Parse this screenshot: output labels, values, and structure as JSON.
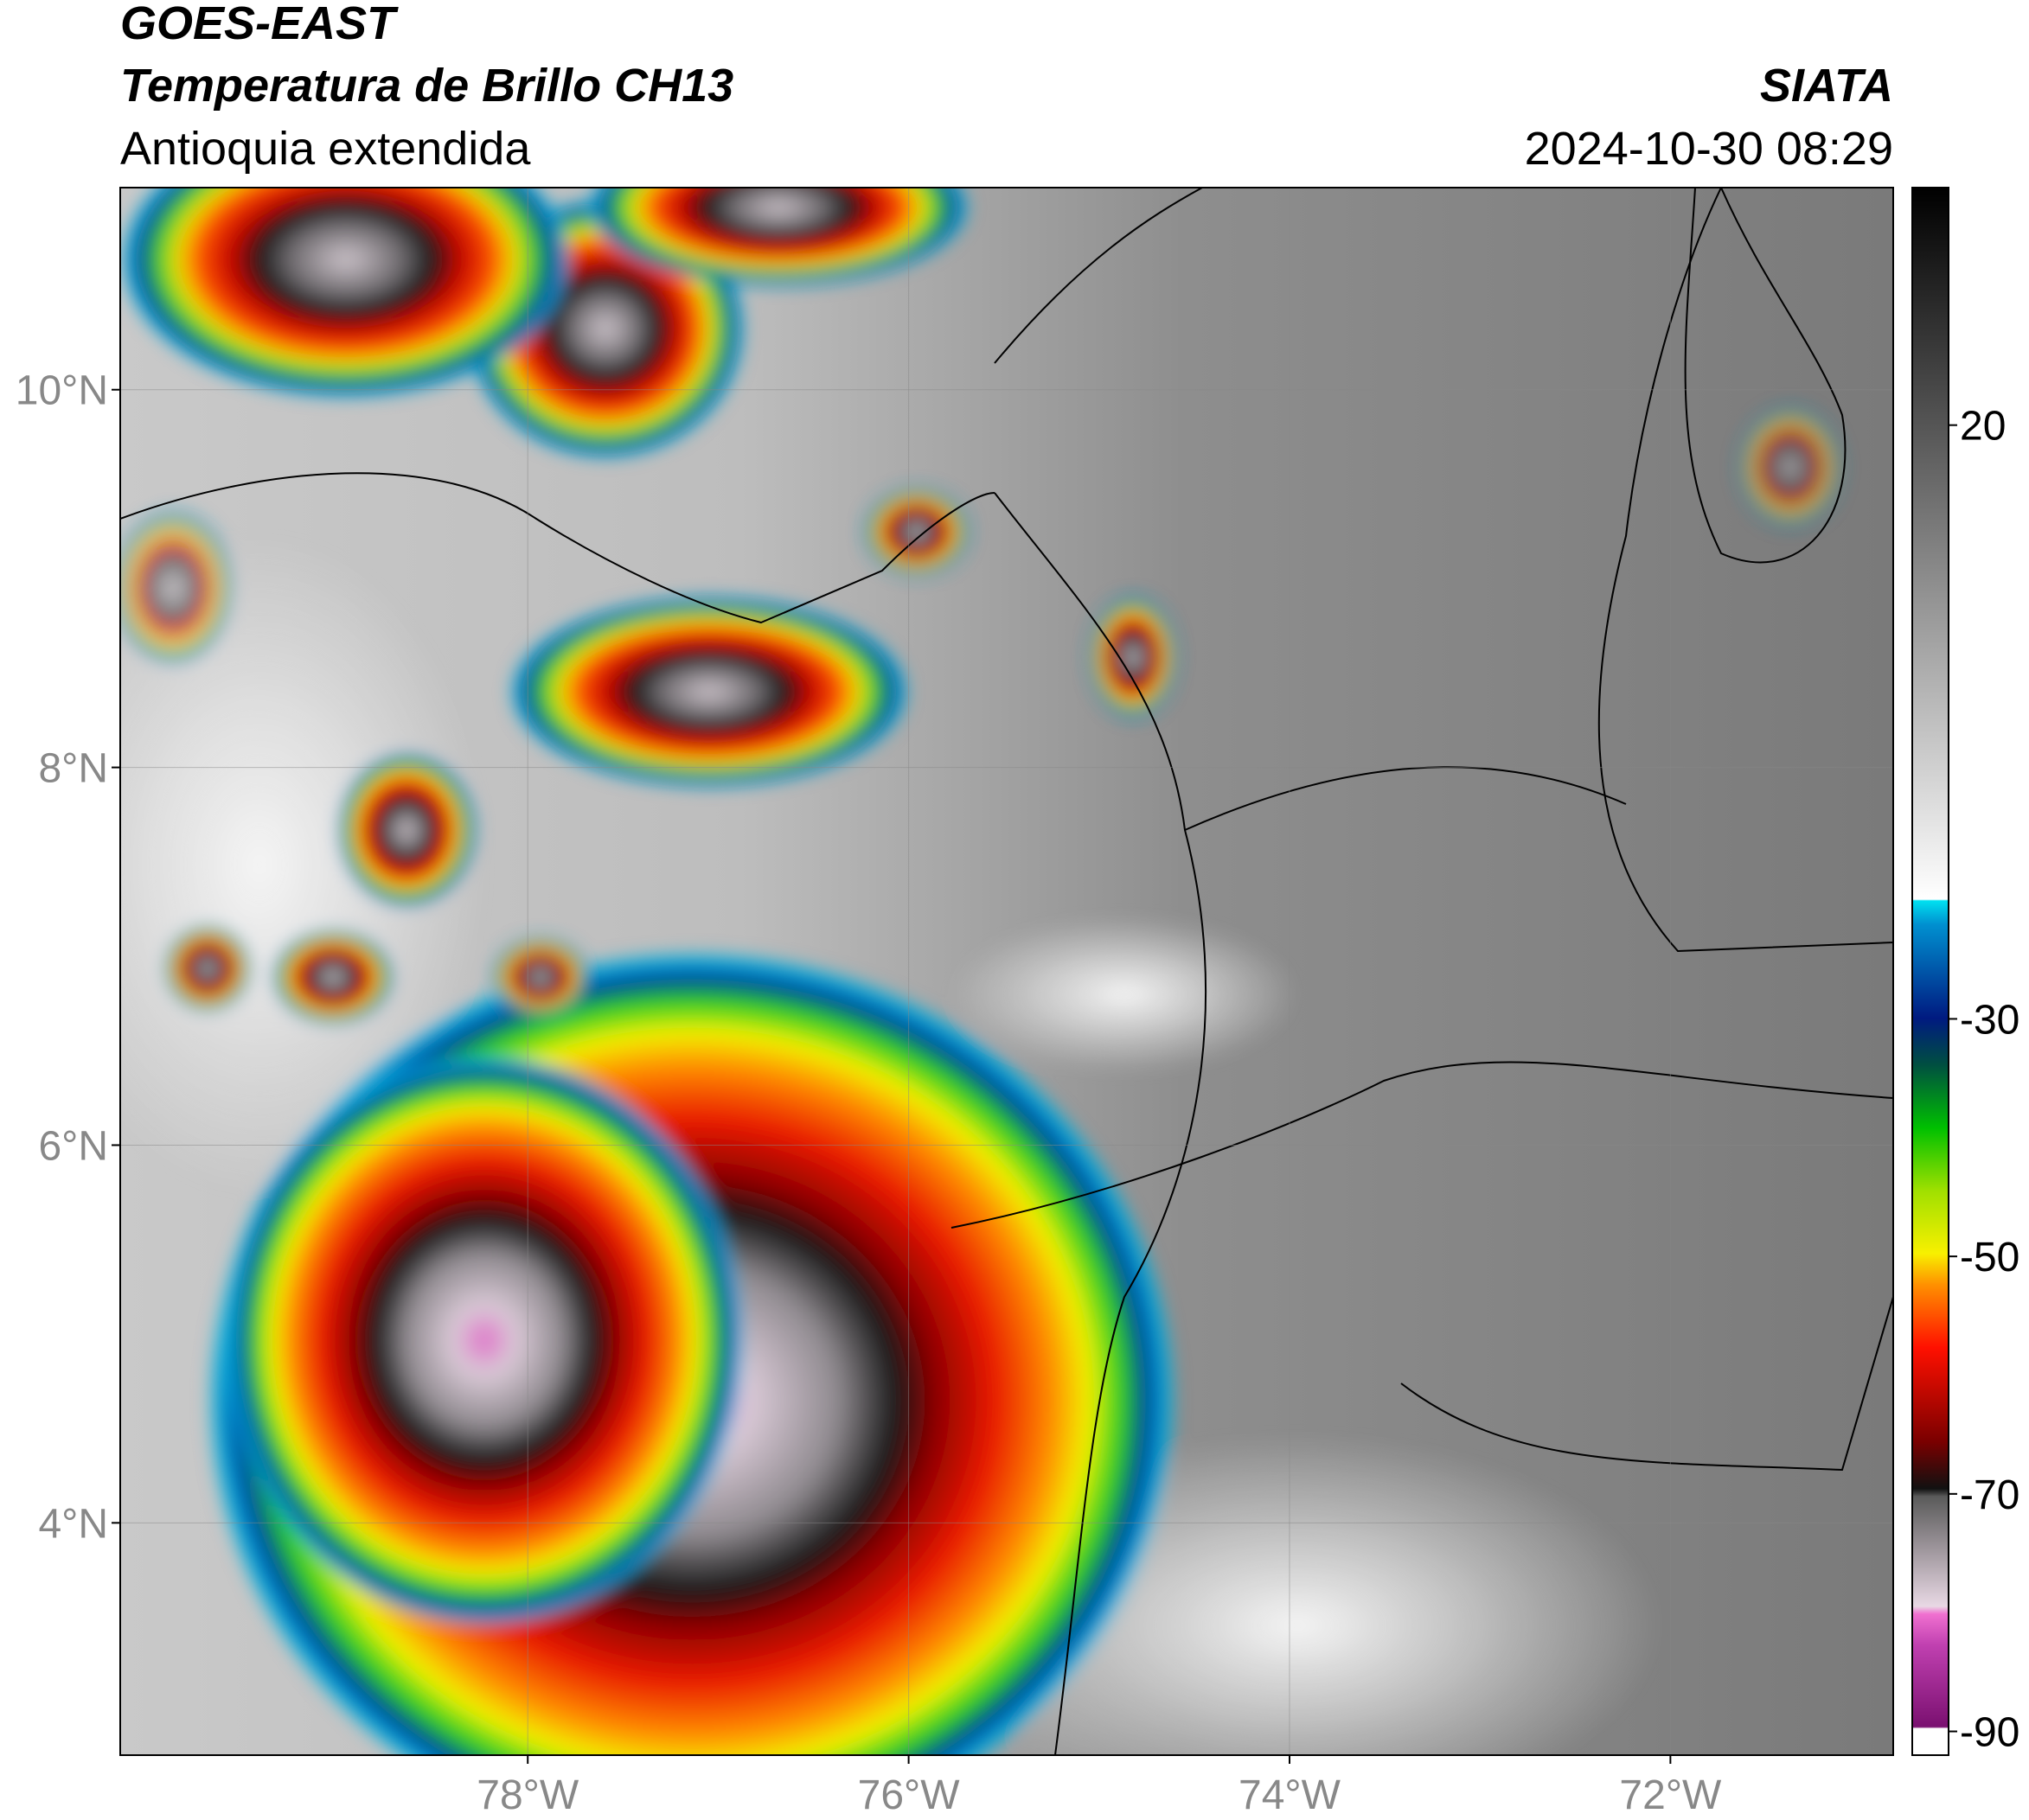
{
  "header": {
    "title": "GOES-EAST",
    "subtitle": "Temperatura de Brillo CH13",
    "region": "Antioquia extendida",
    "source": "SIATA",
    "datetime": "2024-10-30 08:29"
  },
  "map": {
    "lon_range": [
      -80.14,
      -70.83
    ],
    "lat_range": [
      2.77,
      11.07
    ],
    "lat_ticks": [
      {
        "value": 10,
        "label": "10°N"
      },
      {
        "value": 8,
        "label": "8°N"
      },
      {
        "value": 6,
        "label": "6°N"
      },
      {
        "value": 4,
        "label": "4°N"
      }
    ],
    "lon_ticks": [
      {
        "value": -78,
        "label": "78°W"
      },
      {
        "value": -76,
        "label": "76°W"
      },
      {
        "value": -74,
        "label": "74°W"
      },
      {
        "value": -72,
        "label": "72°W"
      }
    ]
  },
  "colorbar": {
    "range": [
      -92,
      40
    ],
    "ticks": [
      20,
      -30,
      -50,
      -70,
      -90
    ]
  }
}
